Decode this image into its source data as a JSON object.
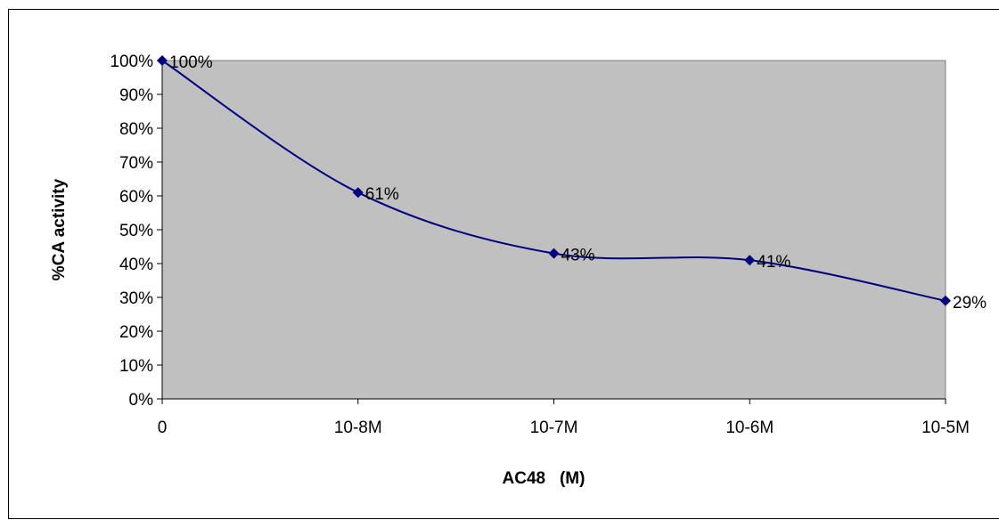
{
  "chart_data": {
    "type": "line",
    "title": "",
    "xlabel": "AC48   (M)",
    "ylabel": "%CA  activity",
    "categories": [
      "0",
      "10-8M",
      "10-7M",
      "10-6M",
      "10-5M"
    ],
    "series": [
      {
        "values": [
          100,
          61,
          43,
          41,
          29
        ],
        "data_labels": [
          "100%",
          "61%",
          "43%",
          "41%",
          "29%"
        ]
      }
    ],
    "ylim": [
      0,
      100
    ],
    "y_ticks": [
      "0%",
      "10%",
      "20%",
      "30%",
      "40%",
      "50%",
      "60%",
      "70%",
      "80%",
      "90%",
      "100%"
    ],
    "grid": false,
    "legend": "none",
    "colors": {
      "plot_background": "#c0c0c0",
      "line": "#000080",
      "marker": "#000080"
    }
  }
}
